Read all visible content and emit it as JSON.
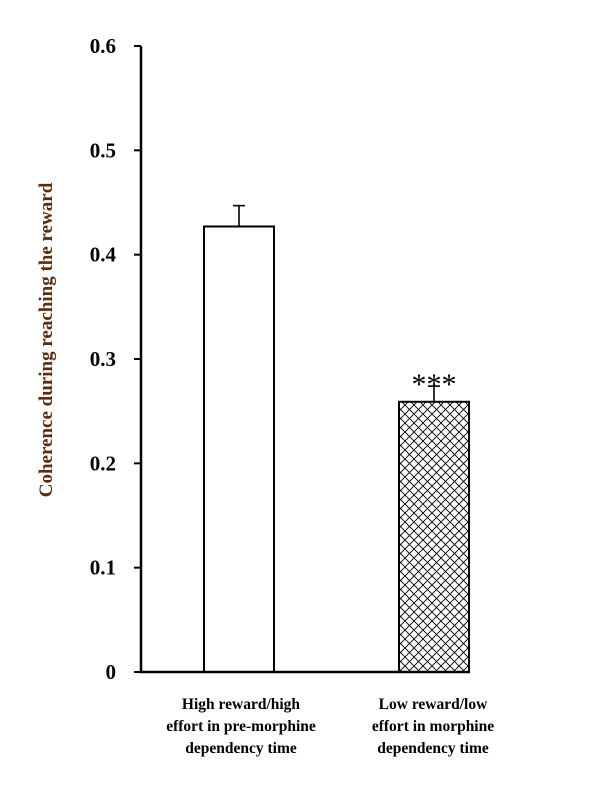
{
  "chart_data": {
    "type": "bar",
    "title": "",
    "xlabel": "",
    "ylabel": "Coherence during reaching the reward",
    "ylim": [
      0,
      0.6
    ],
    "yticks": [
      "0",
      "0.1",
      "0.2",
      "0.3",
      "0.4",
      "0.5",
      "0.6"
    ],
    "categories": [
      [
        "High reward/high",
        "effort in pre-morphine",
        "dependency time"
      ],
      [
        "Low reward/low",
        "effort in morphine",
        "dependency time"
      ]
    ],
    "values": [
      0.427,
      0.259
    ],
    "errors": [
      0.02,
      0.015
    ],
    "fills": [
      "solid-white",
      "crosshatch"
    ],
    "annotations": [
      "",
      "***"
    ],
    "grid": false,
    "legend": "none"
  },
  "colors": {
    "axis": "#000000",
    "ylabel": "#5a2d0c",
    "bar_fill": "#ffffff",
    "bar_stroke": "#000000"
  }
}
